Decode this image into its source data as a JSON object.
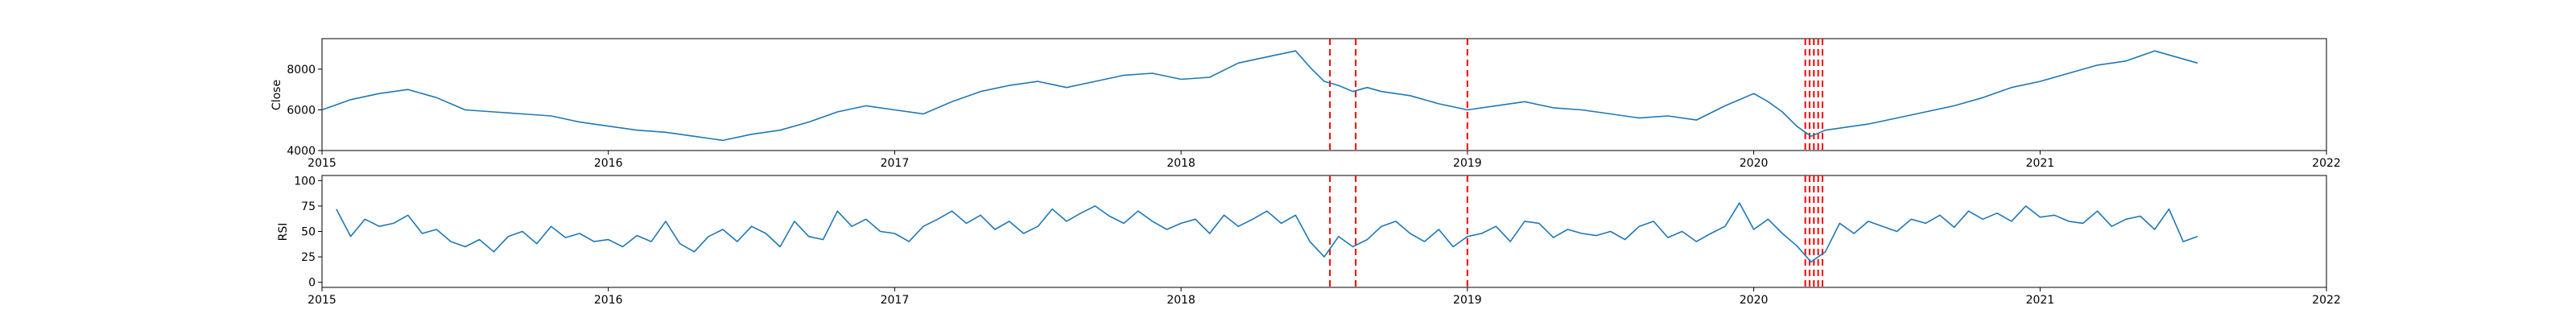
{
  "chart_data": [
    {
      "type": "line",
      "title": "",
      "xlabel": "",
      "ylabel": "Close",
      "xlim": [
        2015,
        2022
      ],
      "ylim": [
        4000,
        9500
      ],
      "x_ticks": [
        2015,
        2016,
        2017,
        2018,
        2019,
        2020,
        2021,
        2022
      ],
      "x_tick_labels": [
        "2015",
        "2016",
        "2017",
        "2018",
        "2019",
        "2020",
        "2021",
        "2022"
      ],
      "y_ticks": [
        4000,
        6000,
        8000
      ],
      "y_tick_labels": [
        "4000",
        "6000",
        "8000"
      ],
      "grid": false,
      "series": [
        {
          "color": "#1f77b4",
          "x": [
            2015.0,
            2015.1,
            2015.2,
            2015.3,
            2015.4,
            2015.5,
            2015.6,
            2015.7,
            2015.8,
            2015.9,
            2016.0,
            2016.1,
            2016.2,
            2016.3,
            2016.4,
            2016.5,
            2016.6,
            2016.7,
            2016.8,
            2016.9,
            2017.0,
            2017.1,
            2017.2,
            2017.3,
            2017.4,
            2017.5,
            2017.6,
            2017.7,
            2017.8,
            2017.9,
            2018.0,
            2018.1,
            2018.2,
            2018.3,
            2018.4,
            2018.45,
            2018.5,
            2018.55,
            2018.6,
            2018.65,
            2018.7,
            2018.8,
            2018.9,
            2019.0,
            2019.1,
            2019.2,
            2019.3,
            2019.4,
            2019.5,
            2019.6,
            2019.7,
            2019.8,
            2019.9,
            2020.0,
            2020.05,
            2020.1,
            2020.15,
            2020.2,
            2020.25,
            2020.3,
            2020.4,
            2020.5,
            2020.6,
            2020.7,
            2020.8,
            2020.9,
            2021.0,
            2021.1,
            2021.2,
            2021.3,
            2021.4,
            2021.5,
            2021.55
          ],
          "y": [
            6000,
            6500,
            6800,
            7000,
            6600,
            6000,
            5900,
            5800,
            5700,
            5400,
            5200,
            5000,
            4900,
            4700,
            4500,
            4800,
            5000,
            5400,
            5900,
            6200,
            6000,
            5800,
            6400,
            6900,
            7200,
            7400,
            7100,
            7400,
            7700,
            7800,
            7500,
            7600,
            8300,
            8600,
            8900,
            8100,
            7400,
            7200,
            6900,
            7100,
            6900,
            6700,
            6300,
            6000,
            6200,
            6400,
            6100,
            6000,
            5800,
            5600,
            5700,
            5500,
            6200,
            6800,
            6400,
            5900,
            5200,
            4700,
            5000,
            5100,
            5300,
            5600,
            5900,
            6200,
            6600,
            7100,
            7400,
            7800,
            8200,
            8400,
            8900,
            8500,
            8300
          ]
        }
      ],
      "event_lines": {
        "color": "#ff0000",
        "style": "dashed",
        "x": [
          2018.52,
          2018.61,
          2019.0,
          2020.18,
          2020.195,
          2020.21,
          2020.225,
          2020.24
        ]
      }
    },
    {
      "type": "line",
      "title": "",
      "xlabel": "",
      "ylabel": "RSI",
      "xlim": [
        2015,
        2022
      ],
      "ylim": [
        -5,
        105
      ],
      "x_ticks": [
        2015,
        2016,
        2017,
        2018,
        2019,
        2020,
        2021,
        2022
      ],
      "x_tick_labels": [
        "2015",
        "2016",
        "2017",
        "2018",
        "2019",
        "2020",
        "2021",
        "2022"
      ],
      "y_ticks": [
        0,
        25,
        50,
        75,
        100
      ],
      "y_tick_labels": [
        "0",
        "25",
        "50",
        "75",
        "100"
      ],
      "grid": false,
      "series": [
        {
          "color": "#1f77b4",
          "x": [
            2015.05,
            2015.1,
            2015.15,
            2015.2,
            2015.25,
            2015.3,
            2015.35,
            2015.4,
            2015.45,
            2015.5,
            2015.55,
            2015.6,
            2015.65,
            2015.7,
            2015.75,
            2015.8,
            2015.85,
            2015.9,
            2015.95,
            2016.0,
            2016.05,
            2016.1,
            2016.15,
            2016.2,
            2016.25,
            2016.3,
            2016.35,
            2016.4,
            2016.45,
            2016.5,
            2016.55,
            2016.6,
            2016.65,
            2016.7,
            2016.75,
            2016.8,
            2016.85,
            2016.9,
            2016.95,
            2017.0,
            2017.05,
            2017.1,
            2017.15,
            2017.2,
            2017.25,
            2017.3,
            2017.35,
            2017.4,
            2017.45,
            2017.5,
            2017.55,
            2017.6,
            2017.65,
            2017.7,
            2017.75,
            2017.8,
            2017.85,
            2017.9,
            2017.95,
            2018.0,
            2018.05,
            2018.1,
            2018.15,
            2018.2,
            2018.25,
            2018.3,
            2018.35,
            2018.4,
            2018.45,
            2018.5,
            2018.55,
            2018.6,
            2018.65,
            2018.7,
            2018.75,
            2018.8,
            2018.85,
            2018.9,
            2018.95,
            2019.0,
            2019.05,
            2019.1,
            2019.15,
            2019.2,
            2019.25,
            2019.3,
            2019.35,
            2019.4,
            2019.45,
            2019.5,
            2019.55,
            2019.6,
            2019.65,
            2019.7,
            2019.75,
            2019.8,
            2019.85,
            2019.9,
            2019.95,
            2020.0,
            2020.05,
            2020.1,
            2020.15,
            2020.2,
            2020.25,
            2020.3,
            2020.35,
            2020.4,
            2020.45,
            2020.5,
            2020.55,
            2020.6,
            2020.65,
            2020.7,
            2020.75,
            2020.8,
            2020.85,
            2020.9,
            2020.95,
            2021.0,
            2021.05,
            2021.1,
            2021.15,
            2021.2,
            2021.25,
            2021.3,
            2021.35,
            2021.4,
            2021.45,
            2021.5,
            2021.55
          ],
          "y": [
            72,
            45,
            62,
            55,
            58,
            66,
            48,
            52,
            40,
            35,
            42,
            30,
            45,
            50,
            38,
            55,
            44,
            48,
            40,
            42,
            35,
            46,
            40,
            60,
            38,
            30,
            45,
            52,
            40,
            55,
            48,
            35,
            60,
            45,
            42,
            70,
            55,
            62,
            50,
            48,
            40,
            55,
            62,
            70,
            58,
            66,
            52,
            60,
            48,
            55,
            72,
            60,
            68,
            75,
            65,
            58,
            70,
            60,
            52,
            58,
            62,
            48,
            66,
            55,
            62,
            70,
            58,
            66,
            40,
            25,
            45,
            35,
            42,
            55,
            60,
            48,
            40,
            52,
            35,
            45,
            48,
            55,
            40,
            60,
            58,
            44,
            52,
            48,
            46,
            50,
            42,
            55,
            60,
            44,
            50,
            40,
            48,
            55,
            78,
            52,
            62,
            48,
            36,
            20,
            30,
            58,
            48,
            60,
            55,
            50,
            62,
            58,
            66,
            54,
            70,
            62,
            68,
            60,
            75,
            64,
            66,
            60,
            58,
            70,
            55,
            62,
            65,
            52,
            72,
            40,
            45
          ]
        }
      ],
      "event_lines": {
        "color": "#ff0000",
        "style": "dashed",
        "x": [
          2018.52,
          2018.61,
          2019.0,
          2020.18,
          2020.195,
          2020.21,
          2020.225,
          2020.24
        ]
      }
    }
  ]
}
